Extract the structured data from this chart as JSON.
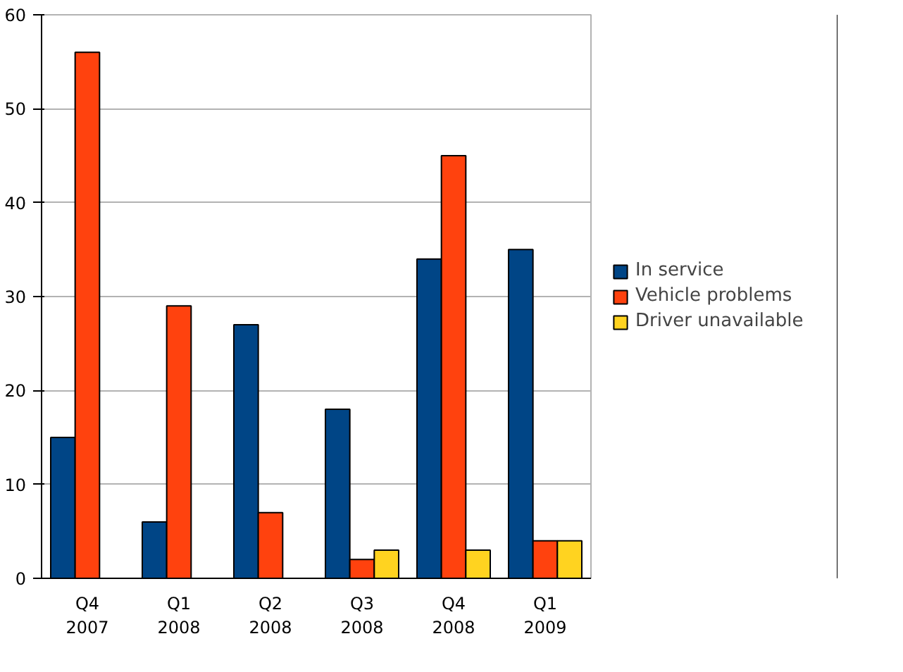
{
  "chart_data": {
    "type": "bar",
    "categories": [
      "Q4\n2007",
      "Q1\n2008",
      "Q2\n2008",
      "Q3\n2008",
      "Q4\n2008",
      "Q1\n2009"
    ],
    "series": [
      {
        "name": "In service",
        "color": "#004586",
        "values": [
          15,
          6,
          27,
          18,
          34,
          35
        ]
      },
      {
        "name": "Vehicle problems",
        "color": "#ff420e",
        "values": [
          56,
          29,
          7,
          2,
          45,
          4
        ]
      },
      {
        "name": "Driver unavailable",
        "color": "#ffd320",
        "values": [
          null,
          null,
          null,
          3,
          3,
          4
        ]
      }
    ],
    "ylim": [
      0,
      60
    ],
    "yticks": [
      0,
      10,
      20,
      30,
      40,
      50,
      60
    ],
    "grid": "y",
    "legend": "right"
  }
}
